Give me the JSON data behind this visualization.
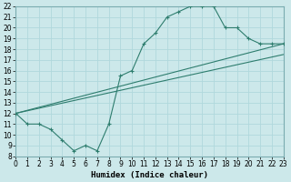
{
  "xlabel": "Humidex (Indice chaleur)",
  "bg_color": "#cce8ea",
  "grid_color": "#b0d8dc",
  "line_color": "#2e7d6e",
  "x_min": 0,
  "x_max": 23,
  "y_min": 8,
  "y_max": 22,
  "line1_x": [
    0,
    1,
    2,
    3,
    4,
    5,
    6,
    7,
    8,
    9,
    10,
    11,
    12,
    13,
    14,
    15,
    16,
    17,
    18,
    19,
    20,
    21,
    22,
    23
  ],
  "line1_y": [
    12,
    11,
    11,
    10.5,
    9.5,
    8.5,
    9,
    8.5,
    11,
    15.5,
    16,
    18.5,
    19.5,
    21,
    21.5,
    22,
    22,
    22,
    20,
    20,
    19,
    18.5,
    18.5,
    18.5
  ],
  "line2_x": [
    0,
    23
  ],
  "line2_y": [
    12,
    18.5
  ],
  "line3_x": [
    0,
    23
  ],
  "line3_y": [
    12,
    17.5
  ],
  "xlabel_fontsize": 6.5,
  "tick_fontsize": 5.5
}
